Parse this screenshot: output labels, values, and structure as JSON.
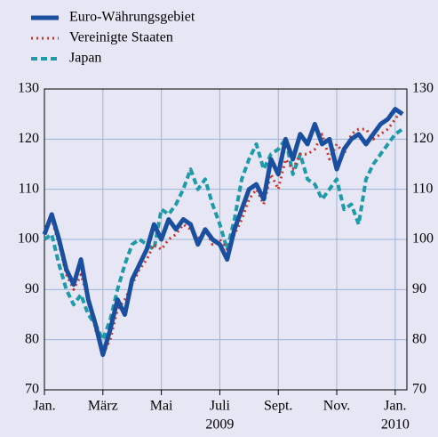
{
  "chart_data": {
    "type": "line",
    "x": [
      0,
      0.25,
      0.5,
      0.75,
      1,
      1.25,
      1.5,
      1.75,
      2,
      2.25,
      2.5,
      2.75,
      3,
      3.25,
      3.5,
      3.75,
      4,
      4.25,
      4.5,
      4.75,
      5,
      5.25,
      5.5,
      5.75,
      6,
      6.25,
      6.5,
      6.75,
      7,
      7.25,
      7.5,
      7.75,
      8,
      8.25,
      8.5,
      8.75,
      9,
      9.25,
      9.5,
      9.75,
      10,
      10.25,
      10.5,
      10.75,
      11,
      11.25,
      11.5,
      11.75,
      12,
      12.25
    ],
    "series": [
      {
        "name": "Euro-Währungsgebiet",
        "color": "#1a4fa0",
        "style": "solid",
        "values": [
          101,
          105,
          100,
          94,
          91,
          96,
          88,
          83,
          77,
          82,
          88,
          85,
          92,
          95,
          98,
          103,
          100,
          104,
          102,
          104,
          103,
          99,
          102,
          100,
          99,
          96,
          102,
          106,
          110,
          111,
          108,
          116,
          113,
          120,
          116,
          121,
          119,
          123,
          119,
          120,
          114,
          118,
          120,
          121,
          119,
          121,
          123,
          124,
          126,
          125
        ]
      },
      {
        "name": "Vereinigte Staaten",
        "color": "#c8372d",
        "style": "dotted",
        "values": [
          102,
          104,
          99,
          93,
          90,
          93,
          88,
          82,
          77,
          80,
          86,
          88,
          91,
          94,
          96,
          99,
          98,
          100,
          101,
          103,
          102,
          100,
          102,
          99,
          100,
          98,
          101,
          104,
          108,
          110,
          107,
          113,
          110,
          116,
          114,
          117,
          117,
          118,
          121,
          116,
          119,
          117,
          121,
          122,
          122,
          120,
          121,
          122,
          124,
          126
        ]
      },
      {
        "name": "Japan",
        "color": "#1e9aa8",
        "style": "dashed",
        "values": [
          100,
          101,
          95,
          90,
          87,
          89,
          85,
          83,
          80,
          84,
          90,
          95,
          99,
          100,
          99,
          98,
          106,
          105,
          107,
          110,
          114,
          110,
          112,
          107,
          103,
          98,
          104,
          112,
          116,
          119,
          114,
          117,
          118,
          120,
          113,
          117,
          112,
          111,
          108,
          110,
          112,
          106,
          107,
          103,
          112,
          115,
          117,
          119,
          121,
          122
        ]
      }
    ],
    "xlim": [
      0,
      12.4
    ],
    "xticks": [
      {
        "value": 0,
        "label": "Jan."
      },
      {
        "value": 2,
        "label": "März"
      },
      {
        "value": 4,
        "label": "Mai"
      },
      {
        "value": 6,
        "label": "Juli"
      },
      {
        "value": 8,
        "label": "Sept."
      },
      {
        "value": 10,
        "label": "Nov."
      },
      {
        "value": 12,
        "label": "Jan."
      }
    ],
    "x_year_labels": [
      {
        "value": 6,
        "label": "2009"
      },
      {
        "value": 12,
        "label": "2010"
      }
    ],
    "ylim": [
      70,
      130
    ],
    "yticks": [
      70,
      80,
      90,
      100,
      110,
      120,
      130
    ],
    "grid": true,
    "right_axis_labels": true
  }
}
